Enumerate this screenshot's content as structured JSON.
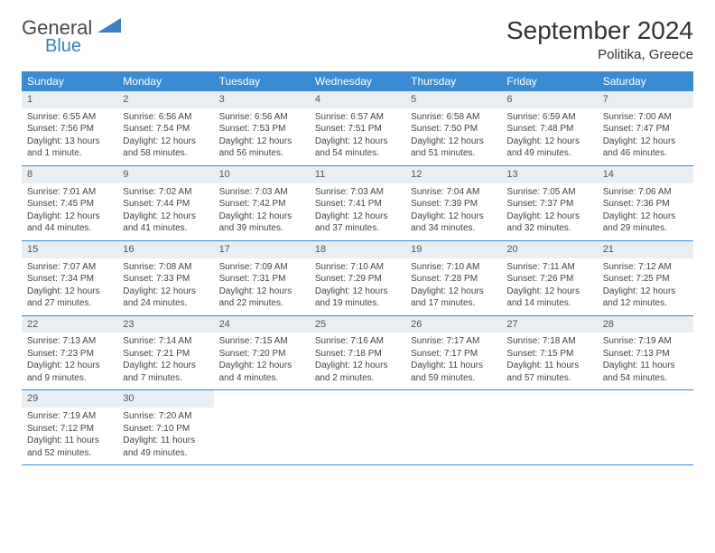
{
  "brand": {
    "word1": "General",
    "word2": "Blue"
  },
  "title": "September 2024",
  "location": "Politika, Greece",
  "colors": {
    "header_bg": "#3b8bd4",
    "header_text": "#ffffff",
    "daynum_bg": "#e9eef2",
    "rule": "#3b8bd4",
    "logo_gray": "#4a4a4a",
    "logo_blue": "#3b7fc4"
  },
  "dow": [
    "Sunday",
    "Monday",
    "Tuesday",
    "Wednesday",
    "Thursday",
    "Friday",
    "Saturday"
  ],
  "weeks": [
    [
      {
        "n": "1",
        "sr": "Sunrise: 6:55 AM",
        "ss": "Sunset: 7:56 PM",
        "dl1": "Daylight: 13 hours",
        "dl2": "and 1 minute."
      },
      {
        "n": "2",
        "sr": "Sunrise: 6:56 AM",
        "ss": "Sunset: 7:54 PM",
        "dl1": "Daylight: 12 hours",
        "dl2": "and 58 minutes."
      },
      {
        "n": "3",
        "sr": "Sunrise: 6:56 AM",
        "ss": "Sunset: 7:53 PM",
        "dl1": "Daylight: 12 hours",
        "dl2": "and 56 minutes."
      },
      {
        "n": "4",
        "sr": "Sunrise: 6:57 AM",
        "ss": "Sunset: 7:51 PM",
        "dl1": "Daylight: 12 hours",
        "dl2": "and 54 minutes."
      },
      {
        "n": "5",
        "sr": "Sunrise: 6:58 AM",
        "ss": "Sunset: 7:50 PM",
        "dl1": "Daylight: 12 hours",
        "dl2": "and 51 minutes."
      },
      {
        "n": "6",
        "sr": "Sunrise: 6:59 AM",
        "ss": "Sunset: 7:48 PM",
        "dl1": "Daylight: 12 hours",
        "dl2": "and 49 minutes."
      },
      {
        "n": "7",
        "sr": "Sunrise: 7:00 AM",
        "ss": "Sunset: 7:47 PM",
        "dl1": "Daylight: 12 hours",
        "dl2": "and 46 minutes."
      }
    ],
    [
      {
        "n": "8",
        "sr": "Sunrise: 7:01 AM",
        "ss": "Sunset: 7:45 PM",
        "dl1": "Daylight: 12 hours",
        "dl2": "and 44 minutes."
      },
      {
        "n": "9",
        "sr": "Sunrise: 7:02 AM",
        "ss": "Sunset: 7:44 PM",
        "dl1": "Daylight: 12 hours",
        "dl2": "and 41 minutes."
      },
      {
        "n": "10",
        "sr": "Sunrise: 7:03 AM",
        "ss": "Sunset: 7:42 PM",
        "dl1": "Daylight: 12 hours",
        "dl2": "and 39 minutes."
      },
      {
        "n": "11",
        "sr": "Sunrise: 7:03 AM",
        "ss": "Sunset: 7:41 PM",
        "dl1": "Daylight: 12 hours",
        "dl2": "and 37 minutes."
      },
      {
        "n": "12",
        "sr": "Sunrise: 7:04 AM",
        "ss": "Sunset: 7:39 PM",
        "dl1": "Daylight: 12 hours",
        "dl2": "and 34 minutes."
      },
      {
        "n": "13",
        "sr": "Sunrise: 7:05 AM",
        "ss": "Sunset: 7:37 PM",
        "dl1": "Daylight: 12 hours",
        "dl2": "and 32 minutes."
      },
      {
        "n": "14",
        "sr": "Sunrise: 7:06 AM",
        "ss": "Sunset: 7:36 PM",
        "dl1": "Daylight: 12 hours",
        "dl2": "and 29 minutes."
      }
    ],
    [
      {
        "n": "15",
        "sr": "Sunrise: 7:07 AM",
        "ss": "Sunset: 7:34 PM",
        "dl1": "Daylight: 12 hours",
        "dl2": "and 27 minutes."
      },
      {
        "n": "16",
        "sr": "Sunrise: 7:08 AM",
        "ss": "Sunset: 7:33 PM",
        "dl1": "Daylight: 12 hours",
        "dl2": "and 24 minutes."
      },
      {
        "n": "17",
        "sr": "Sunrise: 7:09 AM",
        "ss": "Sunset: 7:31 PM",
        "dl1": "Daylight: 12 hours",
        "dl2": "and 22 minutes."
      },
      {
        "n": "18",
        "sr": "Sunrise: 7:10 AM",
        "ss": "Sunset: 7:29 PM",
        "dl1": "Daylight: 12 hours",
        "dl2": "and 19 minutes."
      },
      {
        "n": "19",
        "sr": "Sunrise: 7:10 AM",
        "ss": "Sunset: 7:28 PM",
        "dl1": "Daylight: 12 hours",
        "dl2": "and 17 minutes."
      },
      {
        "n": "20",
        "sr": "Sunrise: 7:11 AM",
        "ss": "Sunset: 7:26 PM",
        "dl1": "Daylight: 12 hours",
        "dl2": "and 14 minutes."
      },
      {
        "n": "21",
        "sr": "Sunrise: 7:12 AM",
        "ss": "Sunset: 7:25 PM",
        "dl1": "Daylight: 12 hours",
        "dl2": "and 12 minutes."
      }
    ],
    [
      {
        "n": "22",
        "sr": "Sunrise: 7:13 AM",
        "ss": "Sunset: 7:23 PM",
        "dl1": "Daylight: 12 hours",
        "dl2": "and 9 minutes."
      },
      {
        "n": "23",
        "sr": "Sunrise: 7:14 AM",
        "ss": "Sunset: 7:21 PM",
        "dl1": "Daylight: 12 hours",
        "dl2": "and 7 minutes."
      },
      {
        "n": "24",
        "sr": "Sunrise: 7:15 AM",
        "ss": "Sunset: 7:20 PM",
        "dl1": "Daylight: 12 hours",
        "dl2": "and 4 minutes."
      },
      {
        "n": "25",
        "sr": "Sunrise: 7:16 AM",
        "ss": "Sunset: 7:18 PM",
        "dl1": "Daylight: 12 hours",
        "dl2": "and 2 minutes."
      },
      {
        "n": "26",
        "sr": "Sunrise: 7:17 AM",
        "ss": "Sunset: 7:17 PM",
        "dl1": "Daylight: 11 hours",
        "dl2": "and 59 minutes."
      },
      {
        "n": "27",
        "sr": "Sunrise: 7:18 AM",
        "ss": "Sunset: 7:15 PM",
        "dl1": "Daylight: 11 hours",
        "dl2": "and 57 minutes."
      },
      {
        "n": "28",
        "sr": "Sunrise: 7:19 AM",
        "ss": "Sunset: 7:13 PM",
        "dl1": "Daylight: 11 hours",
        "dl2": "and 54 minutes."
      }
    ],
    [
      {
        "n": "29",
        "sr": "Sunrise: 7:19 AM",
        "ss": "Sunset: 7:12 PM",
        "dl1": "Daylight: 11 hours",
        "dl2": "and 52 minutes."
      },
      {
        "n": "30",
        "sr": "Sunrise: 7:20 AM",
        "ss": "Sunset: 7:10 PM",
        "dl1": "Daylight: 11 hours",
        "dl2": "and 49 minutes."
      },
      null,
      null,
      null,
      null,
      null
    ]
  ]
}
